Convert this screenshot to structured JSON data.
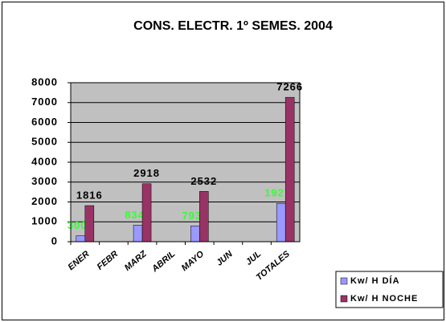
{
  "chart_data": {
    "type": "bar",
    "title": "CONS. ELECTR. 1º SEMES. 2004",
    "categories": [
      "ENER",
      "FEBR",
      "MARZ",
      "ABRIL",
      "MAYO",
      "JUN",
      "JUL",
      "TOTALES"
    ],
    "series": [
      {
        "name": "Kw/ H DÍA",
        "color": "#9999ff",
        "value_label_color": "#33ff33",
        "values": [
          300,
          null,
          834,
          null,
          793,
          null,
          null,
          1927
        ]
      },
      {
        "name": "Kw/ H NOCHE",
        "color": "#993366",
        "value_label_color": "#000000",
        "values": [
          1816,
          null,
          2918,
          null,
          2532,
          null,
          null,
          7266
        ]
      }
    ],
    "ylim": [
      0,
      8000
    ],
    "yticks": [
      0,
      1000,
      2000,
      3000,
      4000,
      5000,
      6000,
      7000,
      8000
    ],
    "grid": true,
    "plot_background": "#c0c0c0",
    "legend": "bottom-right"
  }
}
